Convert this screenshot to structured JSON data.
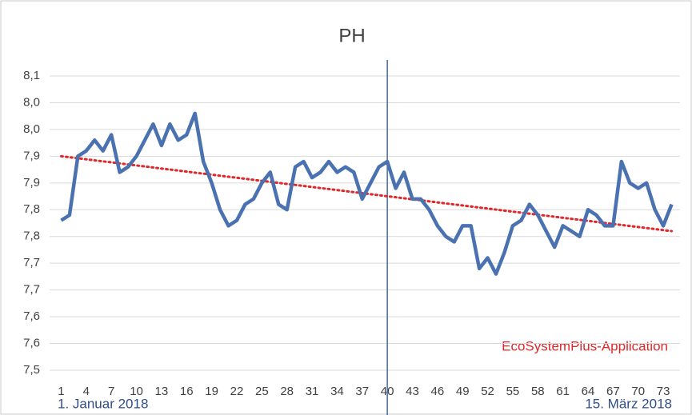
{
  "chart_data": {
    "type": "line",
    "title": "PH",
    "x": [
      1,
      2,
      3,
      4,
      5,
      6,
      7,
      8,
      9,
      10,
      11,
      12,
      13,
      14,
      15,
      16,
      17,
      18,
      19,
      20,
      21,
      22,
      23,
      24,
      25,
      26,
      27,
      28,
      29,
      30,
      31,
      32,
      33,
      34,
      35,
      36,
      37,
      38,
      39,
      40,
      41,
      42,
      43,
      44,
      45,
      46,
      47,
      48,
      49,
      50,
      51,
      52,
      53,
      54,
      55,
      56,
      57,
      58,
      59,
      60,
      61,
      62,
      63,
      64,
      65,
      66,
      67,
      68,
      69,
      70,
      71,
      72,
      73,
      74
    ],
    "series": [
      {
        "color": "#4a72b0",
        "values": [
          7.78,
          7.79,
          7.9,
          7.91,
          7.93,
          7.91,
          7.94,
          7.87,
          7.88,
          7.9,
          7.93,
          7.96,
          7.92,
          7.96,
          7.93,
          7.94,
          7.98,
          7.89,
          7.85,
          7.8,
          7.77,
          7.78,
          7.81,
          7.82,
          7.85,
          7.87,
          7.81,
          7.8,
          7.88,
          7.89,
          7.86,
          7.87,
          7.89,
          7.87,
          7.88,
          7.87,
          7.82,
          7.85,
          7.88,
          7.89,
          7.84,
          7.87,
          7.82,
          7.82,
          7.8,
          7.77,
          7.75,
          7.74,
          7.77,
          7.77,
          7.69,
          7.71,
          7.68,
          7.72,
          7.77,
          7.78,
          7.81,
          7.79,
          7.76,
          7.73,
          7.77,
          7.76,
          7.75,
          7.8,
          7.79,
          7.77,
          7.77,
          7.89,
          7.85,
          7.84,
          7.85,
          7.8,
          7.77,
          7.81
        ]
      }
    ],
    "trend": {
      "color": "#e0282a",
      "x": [
        1,
        74
      ],
      "values": [
        7.9,
        7.76
      ]
    },
    "vline": {
      "x": 40,
      "color": "#3d6aa8"
    },
    "xlim": [
      0,
      75
    ],
    "xticks": [
      1,
      4,
      7,
      10,
      13,
      16,
      19,
      22,
      25,
      28,
      31,
      34,
      37,
      40,
      43,
      46,
      49,
      52,
      55,
      58,
      61,
      64,
      67,
      70,
      73
    ],
    "ylim": [
      7.5,
      8.05
    ],
    "yticks": [
      {
        "value": 7.5,
        "label": "7,5"
      },
      {
        "value": 7.55,
        "label": "7,6"
      },
      {
        "value": 7.6,
        "label": "7,6"
      },
      {
        "value": 7.65,
        "label": "7,7"
      },
      {
        "value": 7.7,
        "label": "7,7"
      },
      {
        "value": 7.75,
        "label": "7,8"
      },
      {
        "value": 7.8,
        "label": "7,8"
      },
      {
        "value": 7.85,
        "label": "7,9"
      },
      {
        "value": 7.9,
        "label": "7,9"
      },
      {
        "value": 7.95,
        "label": "8,0"
      },
      {
        "value": 8.0,
        "label": "8,0"
      },
      {
        "value": 8.05,
        "label": "8,1"
      }
    ],
    "grid": true,
    "date_labels": [
      "1. Januar 2018",
      "15. März 2018"
    ],
    "annotation": "EcoSystemPlus-Application"
  }
}
